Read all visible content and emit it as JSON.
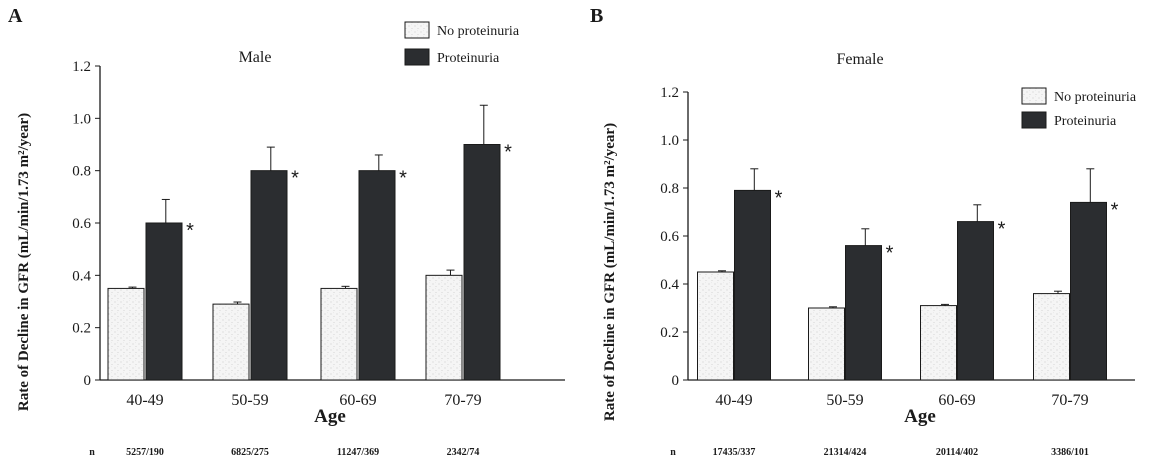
{
  "colors": {
    "no_proteinuria": "#f3f3f3",
    "proteinuria": "#2b2d30",
    "axis": "#1a1a1a"
  },
  "chart_data": [
    {
      "panel": "A",
      "type": "bar",
      "title": "Male",
      "xlabel": "Age",
      "ylabel": "Rate of Decline in GFR (mL/min/1.73 m²/year)",
      "ylim": [
        0,
        1.2
      ],
      "yticks": [
        "0",
        "0.2",
        "0.4",
        "0.6",
        "0.8",
        "1.0",
        "1.2"
      ],
      "categories": [
        "40-49",
        "50-59",
        "60-69",
        "70-79"
      ],
      "series": [
        {
          "name": "No proteinuria",
          "values": [
            0.35,
            0.29,
            0.35,
            0.4
          ],
          "errors": [
            0.005,
            0.008,
            0.008,
            0.02
          ]
        },
        {
          "name": "Proteinuria",
          "values": [
            0.6,
            0.8,
            0.8,
            0.9
          ],
          "errors": [
            0.09,
            0.09,
            0.06,
            0.15
          ]
        }
      ],
      "significance": [
        "*",
        "*",
        "*",
        "*"
      ],
      "n_label": "n",
      "n_values": [
        "5257/190",
        "6825/275",
        "11247/369",
        "2342/74"
      ],
      "legend_position": "top-right",
      "grid": false
    },
    {
      "panel": "B",
      "type": "bar",
      "title": "Female",
      "xlabel": "Age",
      "ylabel": "Rate of Decline in GFR (mL/min/1.73 m²/year)",
      "ylim": [
        0,
        1.2
      ],
      "yticks": [
        "0",
        "0.2",
        "0.4",
        "0.6",
        "0.8",
        "1.0",
        "1.2"
      ],
      "categories": [
        "40-49",
        "50-59",
        "60-69",
        "70-79"
      ],
      "series": [
        {
          "name": "No proteinuria",
          "values": [
            0.45,
            0.3,
            0.31,
            0.36
          ],
          "errors": [
            0.005,
            0.005,
            0.005,
            0.01
          ]
        },
        {
          "name": "Proteinuria",
          "values": [
            0.79,
            0.56,
            0.66,
            0.74
          ],
          "errors": [
            0.09,
            0.07,
            0.07,
            0.14
          ]
        }
      ],
      "significance": [
        "*",
        "*",
        "*",
        "*"
      ],
      "n_label": "n",
      "n_values": [
        "17435/337",
        "21314/424",
        "20114/402",
        "3386/101"
      ],
      "legend_position": "top-right",
      "grid": false
    }
  ]
}
